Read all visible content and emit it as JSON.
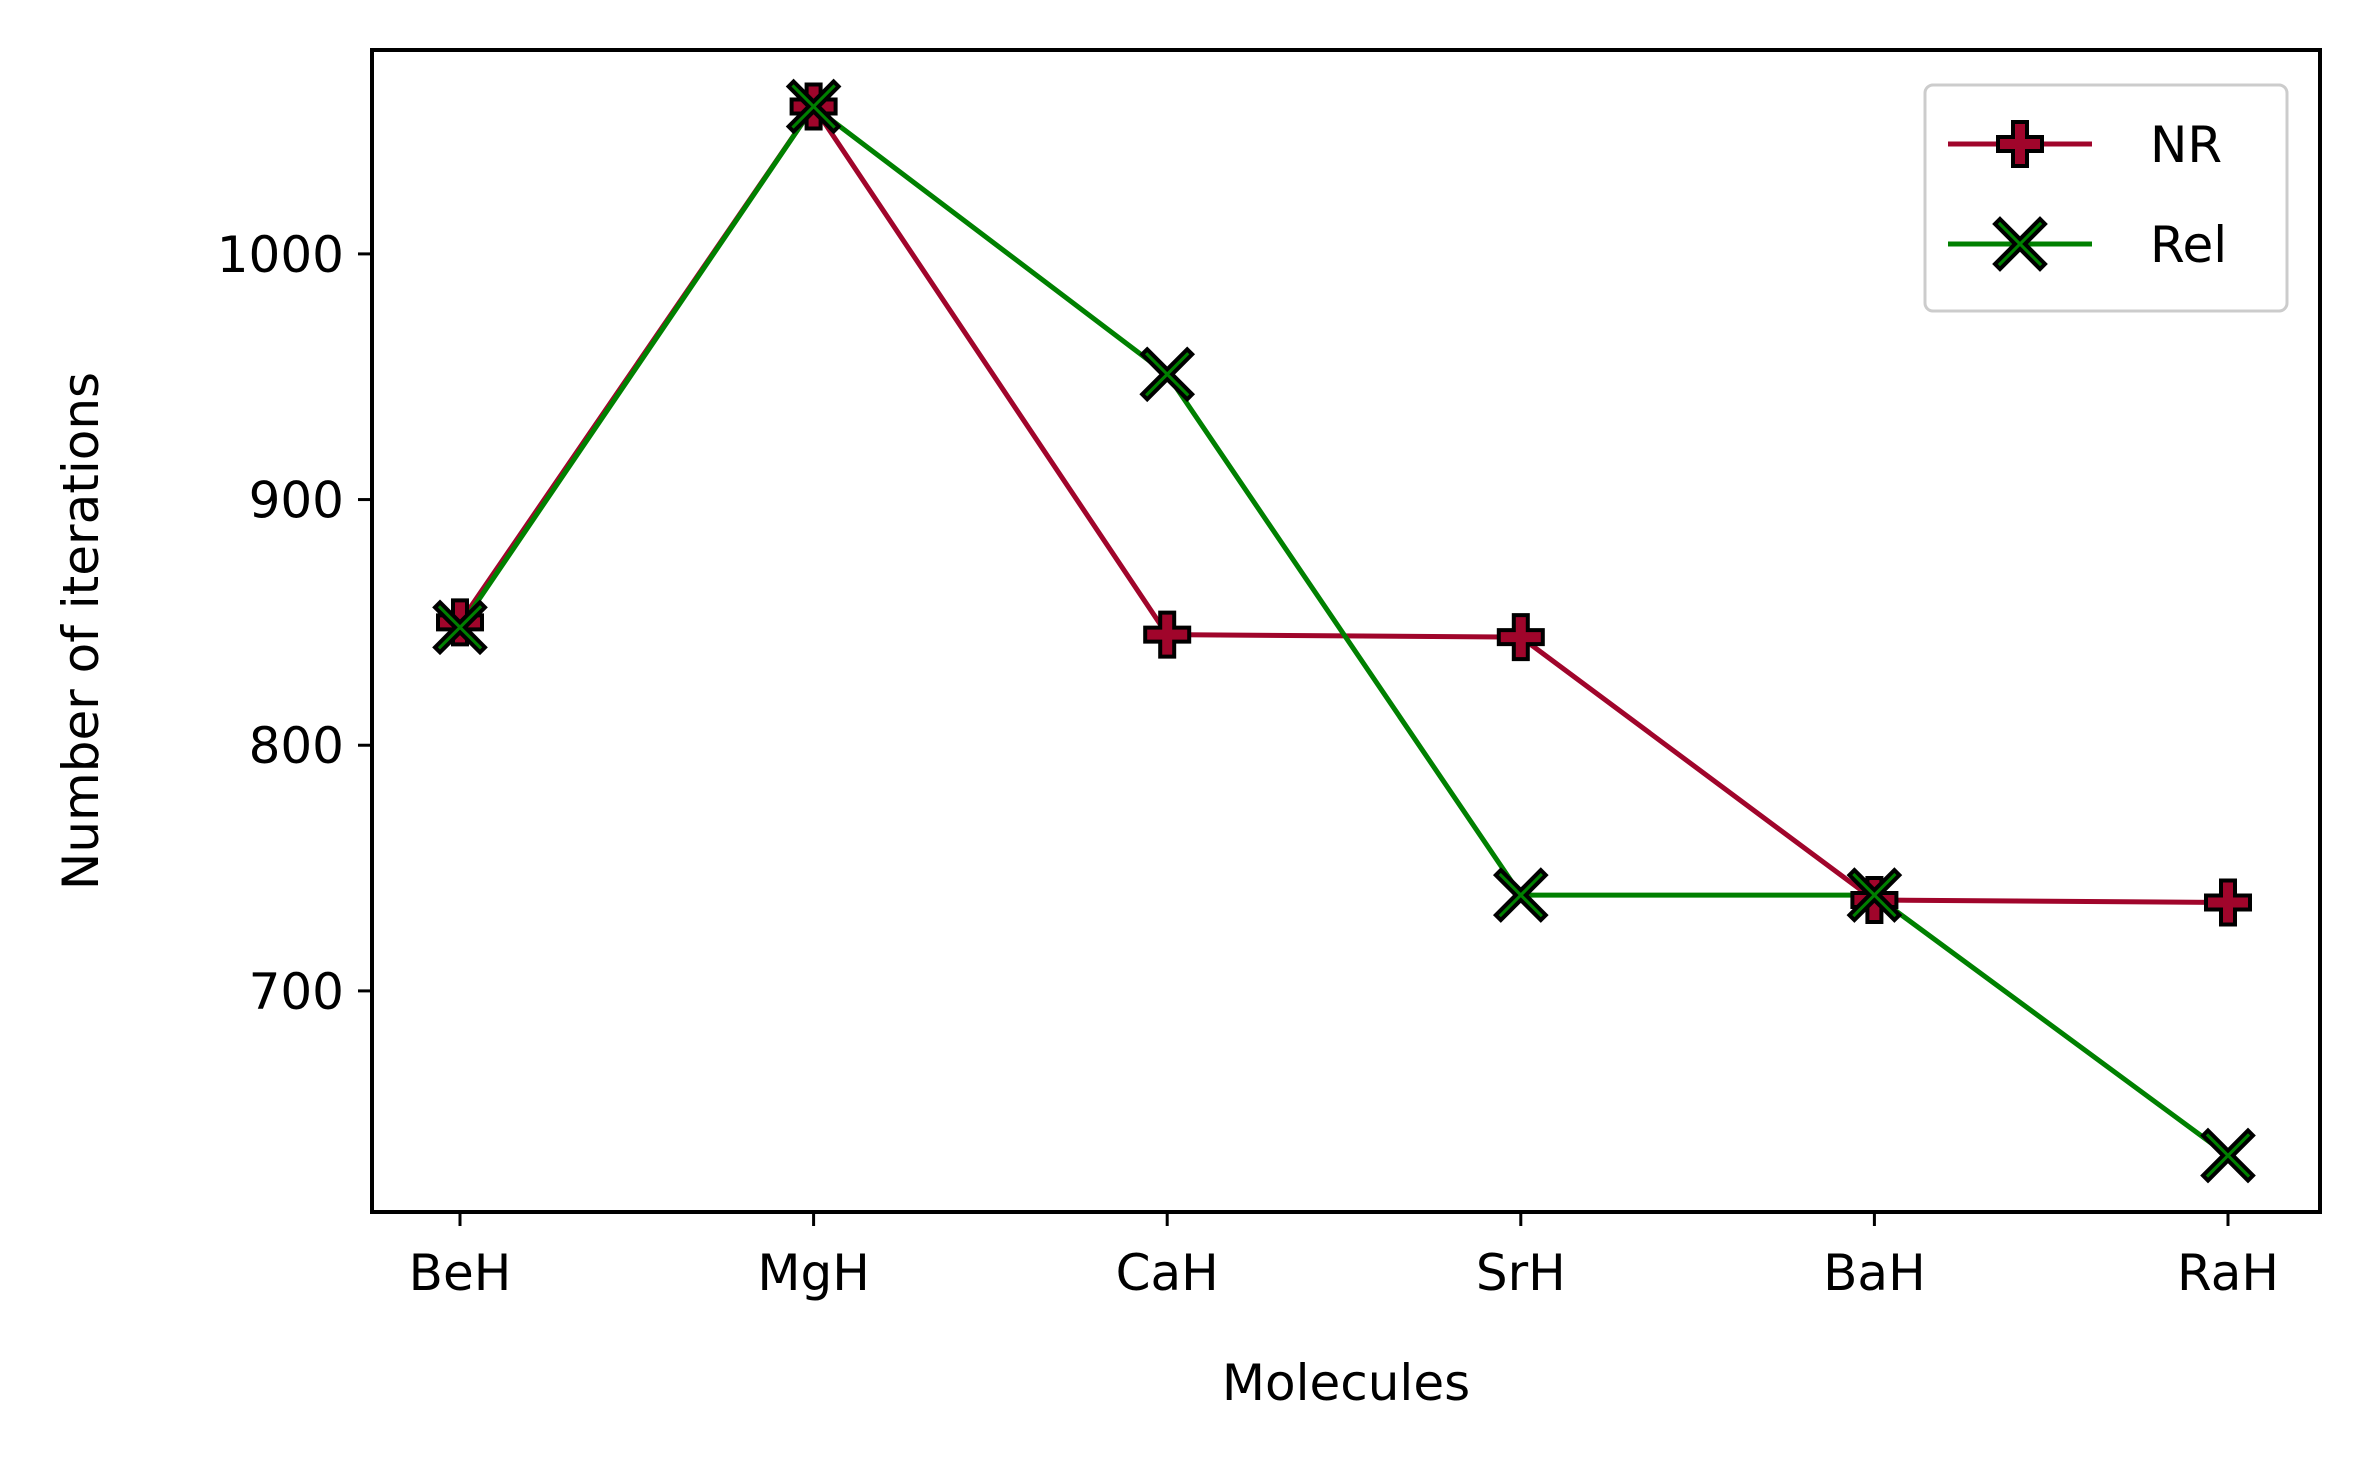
{
  "chart_data": {
    "type": "line",
    "categories": [
      "BeH",
      "MgH",
      "CaH",
      "SrH",
      "BaH",
      "RaH"
    ],
    "xlabel": "Molecules",
    "ylabel": "Number of iterations",
    "ylim": [
      610,
      1083
    ],
    "yticks": [
      700,
      800,
      900,
      1000
    ],
    "grid": false,
    "legend_position": "top-right",
    "series": [
      {
        "name": "NR",
        "values": [
          850,
          1060,
          845,
          844,
          737,
          736
        ],
        "color": "#a0052b",
        "marker": "plus-icon"
      },
      {
        "name": "Rel",
        "values": [
          848,
          1060,
          951,
          739,
          739,
          633
        ],
        "color": "#008000",
        "marker": "x-icon"
      }
    ]
  }
}
